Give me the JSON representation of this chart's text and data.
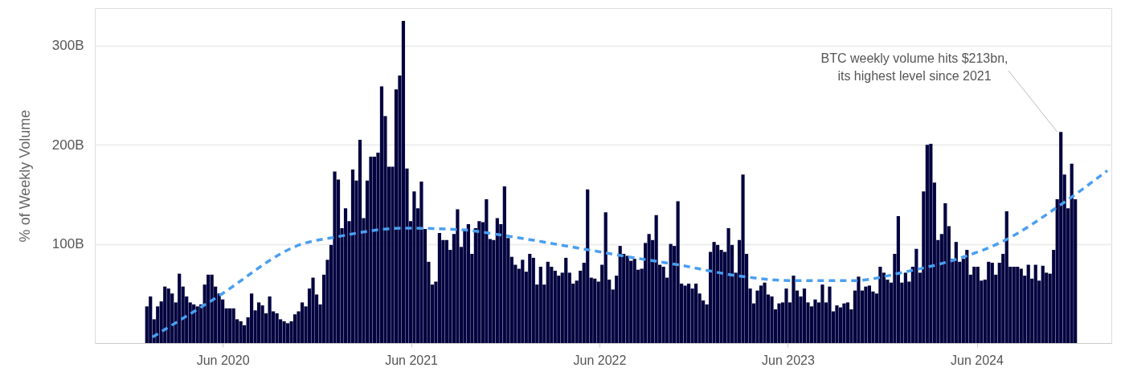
{
  "chart_data": {
    "type": "bar",
    "ylabel": "% of Weekly Volume",
    "ylim": [
      0,
      338
    ],
    "yticks": [
      {
        "value": 100,
        "label": "100B"
      },
      {
        "value": 200,
        "label": "200B"
      },
      {
        "value": 300,
        "label": "300B"
      }
    ],
    "xlim": [
      "2019-10-05",
      "2025-02-09"
    ],
    "xticks": [
      {
        "value": "2020-06-01",
        "label": "Jun 2020"
      },
      {
        "value": "2021-06-01",
        "label": "Jun 2021"
      },
      {
        "value": "2022-06-01",
        "label": "Jun 2022"
      },
      {
        "value": "2023-06-01",
        "label": "Jun 2023"
      },
      {
        "value": "2024-06-01",
        "label": "Jun 2024"
      }
    ],
    "grid": "y",
    "annotations": [
      {
        "text": "BTC weekly volume hits $213bn,\nits highest level since 2021",
        "x": "2024-11-04",
        "y": 213
      }
    ],
    "series": [
      {
        "type": "bar",
        "color": "#03033f",
        "x": [
          "2020-01-06",
          "2020-01-13",
          "2020-01-20",
          "2020-01-27",
          "2020-02-03",
          "2020-02-10",
          "2020-02-17",
          "2020-02-24",
          "2020-03-02",
          "2020-03-09",
          "2020-03-16",
          "2020-03-23",
          "2020-03-30",
          "2020-04-06",
          "2020-04-13",
          "2020-04-20",
          "2020-04-27",
          "2020-05-04",
          "2020-05-11",
          "2020-05-18",
          "2020-05-25",
          "2020-06-01",
          "2020-06-08",
          "2020-06-15",
          "2020-06-22",
          "2020-06-29",
          "2020-07-06",
          "2020-07-13",
          "2020-07-20",
          "2020-07-27",
          "2020-08-03",
          "2020-08-10",
          "2020-08-17",
          "2020-08-24",
          "2020-08-31",
          "2020-09-07",
          "2020-09-14",
          "2020-09-21",
          "2020-09-28",
          "2020-10-05",
          "2020-10-12",
          "2020-10-19",
          "2020-10-26",
          "2020-11-02",
          "2020-11-09",
          "2020-11-16",
          "2020-11-23",
          "2020-11-30",
          "2020-12-07",
          "2020-12-14",
          "2020-12-21",
          "2020-12-28",
          "2021-01-04",
          "2021-01-11",
          "2021-01-18",
          "2021-01-25",
          "2021-02-01",
          "2021-02-08",
          "2021-02-15",
          "2021-02-22",
          "2021-03-01",
          "2021-03-08",
          "2021-03-15",
          "2021-03-22",
          "2021-03-29",
          "2021-04-05",
          "2021-04-12",
          "2021-04-19",
          "2021-04-26",
          "2021-05-03",
          "2021-05-10",
          "2021-05-17",
          "2021-05-24",
          "2021-05-31",
          "2021-06-07",
          "2021-06-14",
          "2021-06-21",
          "2021-06-28",
          "2021-07-05",
          "2021-07-12",
          "2021-07-19",
          "2021-07-26",
          "2021-08-02",
          "2021-08-09",
          "2021-08-16",
          "2021-08-23",
          "2021-08-30",
          "2021-09-06",
          "2021-09-13",
          "2021-09-20",
          "2021-09-27",
          "2021-10-04",
          "2021-10-11",
          "2021-10-18",
          "2021-10-25",
          "2021-11-01",
          "2021-11-08",
          "2021-11-15",
          "2021-11-22",
          "2021-11-29",
          "2021-12-06",
          "2021-12-13",
          "2021-12-20",
          "2021-12-27",
          "2022-01-03",
          "2022-01-10",
          "2022-01-17",
          "2022-01-24",
          "2022-01-31",
          "2022-02-07",
          "2022-02-14",
          "2022-02-21",
          "2022-02-28",
          "2022-03-07",
          "2022-03-14",
          "2022-03-21",
          "2022-03-28",
          "2022-04-04",
          "2022-04-11",
          "2022-04-18",
          "2022-04-25",
          "2022-05-02",
          "2022-05-09",
          "2022-05-16",
          "2022-05-23",
          "2022-05-30",
          "2022-06-06",
          "2022-06-13",
          "2022-06-20",
          "2022-06-27",
          "2022-07-04",
          "2022-07-11",
          "2022-07-18",
          "2022-07-25",
          "2022-08-01",
          "2022-08-08",
          "2022-08-15",
          "2022-08-22",
          "2022-08-29",
          "2022-09-05",
          "2022-09-12",
          "2022-09-19",
          "2022-09-26",
          "2022-10-03",
          "2022-10-10",
          "2022-10-17",
          "2022-10-24",
          "2022-10-31",
          "2022-11-07",
          "2022-11-14",
          "2022-11-21",
          "2022-11-28",
          "2022-12-05",
          "2022-12-12",
          "2022-12-19",
          "2022-12-26",
          "2023-01-02",
          "2023-01-09",
          "2023-01-16",
          "2023-01-23",
          "2023-01-30",
          "2023-02-06",
          "2023-02-13",
          "2023-02-20",
          "2023-02-27",
          "2023-03-06",
          "2023-03-13",
          "2023-03-20",
          "2023-03-27",
          "2023-04-03",
          "2023-04-10",
          "2023-04-17",
          "2023-04-24",
          "2023-05-01",
          "2023-05-08",
          "2023-05-15",
          "2023-05-22",
          "2023-05-29",
          "2023-06-05",
          "2023-06-12",
          "2023-06-19",
          "2023-06-26",
          "2023-07-03",
          "2023-07-10",
          "2023-07-17",
          "2023-07-24",
          "2023-07-31",
          "2023-08-07",
          "2023-08-14",
          "2023-08-21",
          "2023-08-28",
          "2023-09-04",
          "2023-09-11",
          "2023-09-18",
          "2023-09-25",
          "2023-10-02",
          "2023-10-09",
          "2023-10-16",
          "2023-10-23",
          "2023-10-30",
          "2023-11-06",
          "2023-11-13",
          "2023-11-20",
          "2023-11-27",
          "2023-12-04",
          "2023-12-11",
          "2023-12-18",
          "2023-12-25",
          "2024-01-01",
          "2024-01-08",
          "2024-01-15",
          "2024-01-22",
          "2024-01-29",
          "2024-02-05",
          "2024-02-12",
          "2024-02-19",
          "2024-02-26",
          "2024-03-04",
          "2024-03-11",
          "2024-03-18",
          "2024-03-25",
          "2024-04-01",
          "2024-04-08",
          "2024-04-15",
          "2024-04-22",
          "2024-04-29",
          "2024-05-06",
          "2024-05-13",
          "2024-05-20",
          "2024-05-27",
          "2024-06-03",
          "2024-06-10",
          "2024-06-17",
          "2024-06-24",
          "2024-07-01",
          "2024-07-08",
          "2024-07-15",
          "2024-07-22",
          "2024-07-29",
          "2024-08-05",
          "2024-08-12",
          "2024-08-19",
          "2024-08-26",
          "2024-09-02",
          "2024-09-09",
          "2024-09-16",
          "2024-09-23",
          "2024-09-30",
          "2024-10-07",
          "2024-10-14",
          "2024-10-21",
          "2024-10-28",
          "2024-11-04",
          "2024-11-11",
          "2024-11-18",
          "2024-11-25",
          "2024-12-02",
          "2024-12-09"
        ],
        "values": [
          37,
          47,
          24,
          37,
          42,
          57,
          55,
          50,
          41,
          70,
          57,
          47,
          41,
          39,
          37,
          39,
          59,
          69,
          69,
          57,
          50,
          44,
          35,
          35,
          35,
          24,
          22,
          18,
          26,
          50,
          33,
          41,
          38,
          30,
          47,
          32,
          30,
          24,
          22,
          20,
          22,
          29,
          32,
          41,
          37,
          55,
          66,
          49,
          39,
          69,
          84,
          99,
          173,
          165,
          116,
          136,
          123,
          175,
          164,
          205,
          126,
          164,
          188,
          188,
          192,
          259,
          229,
          178,
          178,
          256,
          270,
          325,
          176,
          123,
          153,
          136,
          163,
          115,
          82,
          59,
          62,
          111,
          104,
          104,
          94,
          110,
          135,
          97,
          114,
          120,
          90,
          116,
          123,
          122,
          145,
          105,
          104,
          126,
          120,
          158,
          106,
          87,
          79,
          75,
          84,
          72,
          90,
          86,
          59,
          77,
          59,
          82,
          77,
          73,
          68,
          71,
          86,
          71,
          60,
          63,
          73,
          81,
          155,
          66,
          65,
          62,
          79,
          132,
          64,
          54,
          68,
          98,
          90,
          88,
          83,
          85,
          74,
          75,
          101,
          110,
          104,
          129,
          79,
          77,
          66,
          100,
          98,
          143,
          60,
          58,
          60,
          55,
          60,
          50,
          43,
          39,
          92,
          102,
          99,
          94,
          92,
          116,
          99,
          71,
          104,
          170,
          90,
          55,
          40,
          53,
          58,
          61,
          49,
          47,
          34,
          40,
          41,
          55,
          41,
          68,
          53,
          47,
          55,
          41,
          37,
          44,
          41,
          59,
          41,
          57,
          32,
          38,
          36,
          40,
          41,
          34,
          53,
          67,
          53,
          57,
          58,
          52,
          50,
          77,
          71,
          64,
          61,
          90,
          128,
          61,
          71,
          62,
          77,
          95,
          71,
          153,
          200,
          201,
          162,
          104,
          110,
          141,
          118,
          85,
          102,
          82,
          85,
          94,
          69,
          77,
          77,
          63,
          64,
          82,
          81,
          69,
          81,
          90,
          133,
          77,
          77,
          77,
          75,
          68,
          79,
          65,
          79,
          63,
          78,
          71,
          70,
          94,
          145,
          213,
          170,
          136,
          181,
          145
        ]
      },
      {
        "type": "line",
        "color": "#4a9ff0",
        "line_style": "dashed",
        "x": [
          "2020-01-17",
          "2020-05-17",
          "2020-11-02",
          "2021-01-06",
          "2021-05-18",
          "2021-09-14",
          "2021-11-22",
          "2022-04-30",
          "2022-07-27",
          "2022-10-31",
          "2023-03-07",
          "2023-06-08",
          "2023-10-06",
          "2024-01-16",
          "2024-04-19",
          "2024-07-23",
          "2024-11-12",
          "2025-02-09"
        ],
        "values": [
          6,
          45,
          100,
          107,
          116,
          114,
          109,
          95,
          87,
          79,
          67,
          63,
          63,
          72,
          84,
          103,
          140,
          174
        ]
      }
    ]
  }
}
